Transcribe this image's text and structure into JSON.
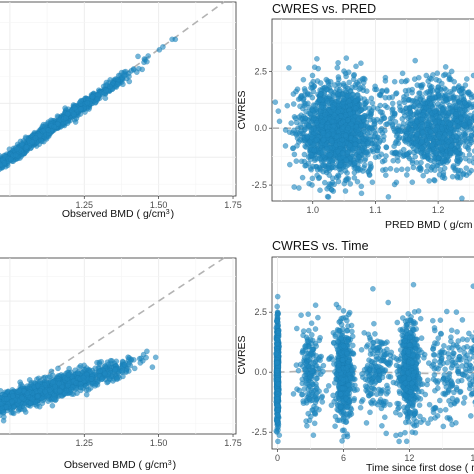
{
  "colors": {
    "points": "#1f88c0",
    "reference_line": "#b3b3b3",
    "frame": "#333333",
    "grid": "#ebebeb"
  },
  "chart_data": [
    {
      "id": "top-left",
      "type": "scatter",
      "title": "",
      "xlabel": "Observed BMD ( g/cm",
      "xlabel_sup": "3",
      "xlabel_close": ")",
      "ylabel": "",
      "xlim": [
        0.96,
        1.76
      ],
      "ylim": [
        0.82,
        1.72
      ],
      "xticks": [
        1.25,
        1.5,
        1.75
      ],
      "xtick_labels": [
        "1.25",
        "1.50",
        "1.75"
      ],
      "yticks": [],
      "ytick_labels": [],
      "grid": true,
      "reference_line": {
        "type": "identity"
      },
      "point_cloud": {
        "n": 1400,
        "x_mean": 1.08,
        "x_sd": 0.15,
        "slope": 0.97,
        "intercept": 0.03,
        "residual_sd": 0.014,
        "x_range": [
          0.9,
          1.72
        ]
      }
    },
    {
      "id": "top-right",
      "type": "scatter",
      "title": "CWRES vs. PRED",
      "xlabel": "PRED BMD ( g/cm",
      "xlabel_sup": "",
      "xlabel_close": "",
      "ylabel": "CWRES",
      "xlim": [
        0.935,
        1.27
      ],
      "ylim": [
        -3.2,
        4.8
      ],
      "xticks": [
        1.0,
        1.1,
        1.2
      ],
      "xtick_labels": [
        "1.0",
        "1.1",
        "1.2"
      ],
      "yticks": [
        2.5,
        0.0,
        -2.5
      ],
      "ytick_labels": [
        "2.5",
        "0.0",
        "-2.5"
      ],
      "grid": true,
      "reference_line": {
        "type": "horizontal",
        "y": 0
      },
      "point_cloud": {
        "n": 2600,
        "clusters": [
          {
            "x": 1.04,
            "sd": 0.032,
            "w": 0.6
          },
          {
            "x": 1.2,
            "sd": 0.035,
            "w": 0.4
          }
        ],
        "y_sd": 1.0
      }
    },
    {
      "id": "bottom-left",
      "type": "scatter",
      "title": "",
      "xlabel": "Observed BMD ( g/cm",
      "xlabel_sup": "3",
      "xlabel_close": ")",
      "ylabel": "",
      "xlim": [
        0.96,
        1.76
      ],
      "ylim": [
        0.82,
        1.72
      ],
      "xticks": [
        1.25,
        1.5,
        1.75
      ],
      "xtick_labels": [
        "1.25",
        "1.50",
        "1.75"
      ],
      "yticks": [],
      "ytick_labels": [],
      "grid": true,
      "reference_line": {
        "type": "identity"
      },
      "point_cloud": {
        "n": 1500,
        "x_mean": 1.08,
        "x_sd": 0.15,
        "slope": 0.45,
        "intercept": 0.54,
        "residual_sd": 0.028,
        "x_range": [
          0.9,
          1.72
        ]
      }
    },
    {
      "id": "bottom-right",
      "type": "scatter",
      "title": "CWRES vs. Time",
      "xlabel": "Time since first dose ( mon",
      "xlabel_sup": "",
      "xlabel_close": "",
      "ylabel": "CWRES",
      "xlim": [
        -0.5,
        18.6
      ],
      "ylim": [
        -3.2,
        4.8
      ],
      "xticks": [
        0,
        6,
        12,
        18
      ],
      "xtick_labels": [
        "0",
        "6",
        "12",
        "18"
      ],
      "yticks": [
        2.5,
        0.0,
        -2.5
      ],
      "ytick_labels": [
        "2.5",
        "0.0",
        "-2.5"
      ],
      "grid": true,
      "reference_line": {
        "type": "lowess"
      },
      "point_cloud": {
        "n": 2300,
        "clusters": [
          {
            "x": 0,
            "sd": 0.05,
            "w": 0.3
          },
          {
            "x": 3,
            "sd": 0.55,
            "w": 0.08
          },
          {
            "x": 6,
            "sd": 0.4,
            "w": 0.22
          },
          {
            "x": 9,
            "sd": 0.8,
            "w": 0.07
          },
          {
            "x": 12,
            "sd": 0.45,
            "w": 0.22
          },
          {
            "x": 15.5,
            "sd": 1.1,
            "w": 0.07
          },
          {
            "x": 18.2,
            "sd": 0.4,
            "w": 0.04
          }
        ],
        "y_sd": 1.0
      }
    }
  ]
}
